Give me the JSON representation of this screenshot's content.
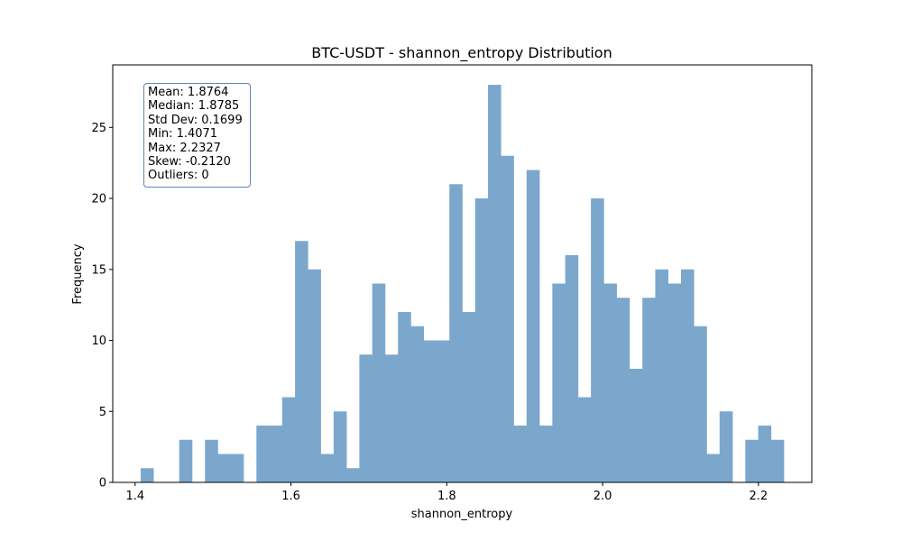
{
  "chart_data": {
    "type": "bar",
    "title": "BTC-USDT - shannon_entropy Distribution",
    "xlabel": "shannon_entropy",
    "ylabel": "Frequency",
    "xlim": [
      1.3713,
      2.2685
    ],
    "ylim": [
      0,
      29.4
    ],
    "xticks": [
      {
        "value": 1.4,
        "label": "1.4"
      },
      {
        "value": 1.6,
        "label": "1.6"
      },
      {
        "value": 1.8,
        "label": "1.8"
      },
      {
        "value": 2.0,
        "label": "2.0"
      },
      {
        "value": 2.2,
        "label": "2.2"
      }
    ],
    "yticks": [
      {
        "value": 0,
        "label": "0"
      },
      {
        "value": 5,
        "label": "5"
      },
      {
        "value": 10,
        "label": "10"
      },
      {
        "value": 15,
        "label": "15"
      },
      {
        "value": 20,
        "label": "20"
      },
      {
        "value": 25,
        "label": "25"
      }
    ],
    "bin_start": 1.4071,
    "bin_end": 2.2327,
    "counts": [
      1,
      0,
      0,
      3,
      0,
      3,
      2,
      2,
      0,
      4,
      4,
      6,
      17,
      15,
      2,
      5,
      1,
      9,
      14,
      9,
      12,
      11,
      10,
      10,
      21,
      12,
      20,
      28,
      23,
      4,
      22,
      4,
      14,
      16,
      6,
      20,
      14,
      13,
      8,
      13,
      15,
      14,
      15,
      11,
      2,
      5,
      0,
      3,
      4,
      3
    ],
    "bar_color": "#7ba7cc",
    "grid": false,
    "stats_lines": [
      "Mean: 1.8764",
      "Median: 1.8785",
      "Std Dev: 0.1699",
      "Min: 1.4071",
      "Max: 2.2327",
      "Skew: -0.2120",
      "Outliers: 0"
    ],
    "stats_box_position": "top-left"
  }
}
